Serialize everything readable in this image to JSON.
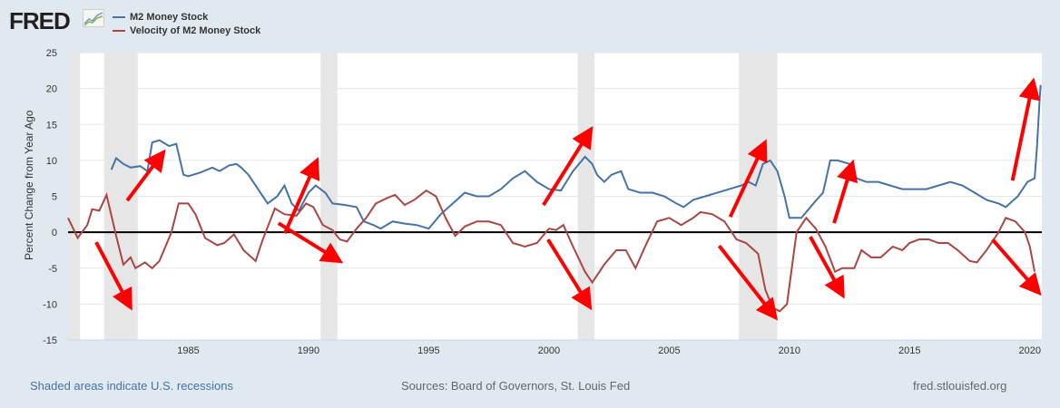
{
  "header": {
    "logo": "FRED",
    "legend": [
      {
        "label": "M2 Money Stock",
        "color": "#4572a7"
      },
      {
        "label": "Velocity of M2 Money Stock",
        "color": "#aa4643"
      }
    ]
  },
  "footer": {
    "recession_note": "Shaded areas indicate U.S. recessions",
    "sources": "Sources: Board of Governors, St. Louis Fed",
    "site": "fred.stlouisfed.org"
  },
  "chart_data": {
    "type": "line",
    "ylabel": "Percent Change from Year Ago",
    "xlim": [
      1980.0,
      2020.5
    ],
    "ylim": [
      -15,
      25
    ],
    "yticks": [
      25,
      20,
      15,
      10,
      5,
      0,
      -5,
      -10,
      -15
    ],
    "xticks": [
      1985,
      1990,
      1995,
      2000,
      2005,
      2010,
      2015,
      2020
    ],
    "grid": true,
    "recessions": [
      [
        1980.0,
        1980.5
      ],
      [
        1981.5,
        1982.9
      ],
      [
        1990.5,
        1991.2
      ],
      [
        2001.2,
        2001.9
      ],
      [
        2007.9,
        2009.5
      ]
    ],
    "series": [
      {
        "name": "M2 Money Stock",
        "color": "#4572a7",
        "points": [
          [
            1981.8,
            8.7
          ],
          [
            1982.0,
            10.3
          ],
          [
            1982.3,
            9.5
          ],
          [
            1982.6,
            9.0
          ],
          [
            1983.0,
            9.2
          ],
          [
            1983.3,
            8.5
          ],
          [
            1983.5,
            12.5
          ],
          [
            1983.8,
            12.8
          ],
          [
            1984.2,
            12.0
          ],
          [
            1984.5,
            12.3
          ],
          [
            1984.8,
            8.0
          ],
          [
            1985.0,
            7.8
          ],
          [
            1985.5,
            8.3
          ],
          [
            1986.0,
            9.0
          ],
          [
            1986.3,
            8.5
          ],
          [
            1986.7,
            9.3
          ],
          [
            1987.0,
            9.5
          ],
          [
            1987.2,
            9.0
          ],
          [
            1987.5,
            8.0
          ],
          [
            1987.8,
            6.5
          ],
          [
            1988.0,
            5.5
          ],
          [
            1988.3,
            4.0
          ],
          [
            1988.7,
            5.0
          ],
          [
            1989.0,
            6.5
          ],
          [
            1989.3,
            4.0
          ],
          [
            1989.6,
            3.0
          ],
          [
            1990.0,
            5.5
          ],
          [
            1990.3,
            6.5
          ],
          [
            1990.7,
            5.5
          ],
          [
            1991.0,
            4.0
          ],
          [
            1991.5,
            3.8
          ],
          [
            1992.0,
            3.5
          ],
          [
            1992.3,
            1.5
          ],
          [
            1992.7,
            1.0
          ],
          [
            1993.0,
            0.5
          ],
          [
            1993.5,
            1.5
          ],
          [
            1994.0,
            1.2
          ],
          [
            1994.5,
            1.0
          ],
          [
            1995.0,
            0.5
          ],
          [
            1995.5,
            2.5
          ],
          [
            1996.0,
            4.0
          ],
          [
            1996.5,
            5.5
          ],
          [
            1997.0,
            5.0
          ],
          [
            1997.5,
            5.0
          ],
          [
            1998.0,
            6.0
          ],
          [
            1998.5,
            7.5
          ],
          [
            1999.0,
            8.5
          ],
          [
            1999.5,
            7.0
          ],
          [
            2000.0,
            6.0
          ],
          [
            2000.5,
            5.8
          ],
          [
            2001.0,
            8.5
          ],
          [
            2001.5,
            10.5
          ],
          [
            2001.8,
            9.5
          ],
          [
            2002.0,
            8.0
          ],
          [
            2002.3,
            7.0
          ],
          [
            2002.6,
            8.0
          ],
          [
            2003.0,
            8.5
          ],
          [
            2003.3,
            6.0
          ],
          [
            2003.8,
            5.5
          ],
          [
            2004.3,
            5.5
          ],
          [
            2004.8,
            5.0
          ],
          [
            2005.3,
            4.0
          ],
          [
            2005.6,
            3.5
          ],
          [
            2006.0,
            4.5
          ],
          [
            2006.5,
            5.0
          ],
          [
            2007.0,
            5.5
          ],
          [
            2007.5,
            6.0
          ],
          [
            2008.0,
            6.5
          ],
          [
            2008.3,
            7.0
          ],
          [
            2008.6,
            6.5
          ],
          [
            2008.9,
            9.5
          ],
          [
            2009.2,
            10.0
          ],
          [
            2009.5,
            8.5
          ],
          [
            2009.8,
            5.0
          ],
          [
            2010.0,
            2.0
          ],
          [
            2010.5,
            2.0
          ],
          [
            2011.0,
            4.0
          ],
          [
            2011.4,
            5.5
          ],
          [
            2011.7,
            10.0
          ],
          [
            2012.0,
            10.0
          ],
          [
            2012.5,
            9.5
          ],
          [
            2012.8,
            7.5
          ],
          [
            2013.2,
            7.0
          ],
          [
            2013.7,
            7.0
          ],
          [
            2014.2,
            6.5
          ],
          [
            2014.7,
            6.0
          ],
          [
            2015.2,
            6.0
          ],
          [
            2015.7,
            6.0
          ],
          [
            2016.2,
            6.5
          ],
          [
            2016.7,
            7.0
          ],
          [
            2017.2,
            6.5
          ],
          [
            2017.7,
            5.5
          ],
          [
            2018.2,
            4.5
          ],
          [
            2018.7,
            4.0
          ],
          [
            2019.0,
            3.5
          ],
          [
            2019.5,
            5.0
          ],
          [
            2019.9,
            7.0
          ],
          [
            2020.2,
            7.5
          ],
          [
            2020.3,
            12.0
          ],
          [
            2020.4,
            18.0
          ],
          [
            2020.45,
            20.5
          ]
        ]
      },
      {
        "name": "Velocity of M2 Money Stock",
        "color": "#aa4643",
        "points": [
          [
            1980.0,
            2.0
          ],
          [
            1980.4,
            -0.8
          ],
          [
            1980.8,
            1.0
          ],
          [
            1981.0,
            3.2
          ],
          [
            1981.3,
            3.0
          ],
          [
            1981.6,
            5.2
          ],
          [
            1982.0,
            -0.5
          ],
          [
            1982.3,
            -4.5
          ],
          [
            1982.6,
            -3.5
          ],
          [
            1982.8,
            -5.0
          ],
          [
            1983.2,
            -4.2
          ],
          [
            1983.5,
            -5.0
          ],
          [
            1983.8,
            -4.0
          ],
          [
            1984.3,
            0
          ],
          [
            1984.6,
            4.0
          ],
          [
            1985.0,
            4.0
          ],
          [
            1985.3,
            2.5
          ],
          [
            1985.7,
            -0.8
          ],
          [
            1986.2,
            -1.8
          ],
          [
            1986.5,
            -1.5
          ],
          [
            1986.9,
            -0.3
          ],
          [
            1987.3,
            -2.5
          ],
          [
            1987.8,
            -4.0
          ],
          [
            1988.1,
            -1.0
          ],
          [
            1988.6,
            3.3
          ],
          [
            1989.0,
            2.5
          ],
          [
            1989.5,
            2.3
          ],
          [
            1989.9,
            4.0
          ],
          [
            1990.2,
            3.5
          ],
          [
            1990.6,
            1.0
          ],
          [
            1991.0,
            0.3
          ],
          [
            1991.3,
            -1.0
          ],
          [
            1991.6,
            -1.3
          ],
          [
            1992.0,
            0.5
          ],
          [
            1992.4,
            2.0
          ],
          [
            1992.8,
            4.0
          ],
          [
            1993.3,
            4.8
          ],
          [
            1993.6,
            5.2
          ],
          [
            1994.0,
            3.8
          ],
          [
            1994.4,
            4.5
          ],
          [
            1994.9,
            5.8
          ],
          [
            1995.3,
            5.0
          ],
          [
            1995.7,
            2.0
          ],
          [
            1996.1,
            -0.5
          ],
          [
            1996.5,
            0.8
          ],
          [
            1997.0,
            1.5
          ],
          [
            1997.5,
            1.5
          ],
          [
            1998.0,
            1.0
          ],
          [
            1998.5,
            -1.5
          ],
          [
            1999.0,
            -2.0
          ],
          [
            1999.5,
            -1.5
          ],
          [
            2000.0,
            0.5
          ],
          [
            2000.3,
            0.3
          ],
          [
            2000.6,
            1.0
          ],
          [
            2001.0,
            -2.0
          ],
          [
            2001.5,
            -5.5
          ],
          [
            2001.8,
            -7.0
          ],
          [
            2002.3,
            -4.5
          ],
          [
            2002.8,
            -2.5
          ],
          [
            2003.2,
            -2.5
          ],
          [
            2003.6,
            -5.0
          ],
          [
            2004.0,
            -2.0
          ],
          [
            2004.5,
            1.5
          ],
          [
            2005.0,
            2.0
          ],
          [
            2005.5,
            1.0
          ],
          [
            2006.0,
            2.0
          ],
          [
            2006.3,
            2.8
          ],
          [
            2006.8,
            2.5
          ],
          [
            2007.3,
            1.5
          ],
          [
            2007.8,
            -1.0
          ],
          [
            2008.2,
            -1.5
          ],
          [
            2008.7,
            -3.0
          ],
          [
            2009.0,
            -8.0
          ],
          [
            2009.3,
            -10.5
          ],
          [
            2009.6,
            -11.0
          ],
          [
            2009.9,
            -10.0
          ],
          [
            2010.3,
            0
          ],
          [
            2010.7,
            2.0
          ],
          [
            2011.1,
            0.5
          ],
          [
            2011.5,
            -2.0
          ],
          [
            2011.9,
            -5.5
          ],
          [
            2012.2,
            -5.0
          ],
          [
            2012.7,
            -5.0
          ],
          [
            2013.0,
            -2.5
          ],
          [
            2013.4,
            -3.5
          ],
          [
            2013.8,
            -3.5
          ],
          [
            2014.3,
            -2.0
          ],
          [
            2014.7,
            -2.5
          ],
          [
            2015.0,
            -1.5
          ],
          [
            2015.4,
            -1.0
          ],
          [
            2015.8,
            -1.0
          ],
          [
            2016.2,
            -1.5
          ],
          [
            2016.6,
            -1.5
          ],
          [
            2017.0,
            -2.5
          ],
          [
            2017.5,
            -4.0
          ],
          [
            2017.8,
            -4.2
          ],
          [
            2018.2,
            -2.5
          ],
          [
            2018.7,
            0
          ],
          [
            2019.0,
            2.0
          ],
          [
            2019.4,
            1.5
          ],
          [
            2019.8,
            0
          ],
          [
            2020.0,
            -2.0
          ],
          [
            2020.2,
            -5.5
          ]
        ]
      }
    ],
    "annotations": {
      "type": "arrows",
      "color": "#ff0000",
      "arrows": [
        [
          [
            1982.46,
            4.41
          ],
          [
            1983.79,
            10.34
          ]
        ],
        [
          [
            1981.17,
            -1.39
          ],
          [
            1982.46,
            -9.58
          ]
        ],
        [
          [
            1989.02,
            -0.13
          ],
          [
            1990.23,
            9.08
          ]
        ],
        [
          [
            1988.75,
            1.26
          ],
          [
            1991.06,
            -3.53
          ]
        ],
        [
          [
            1999.77,
            3.78
          ],
          [
            2001.59,
            13.49
          ]
        ],
        [
          [
            1999.96,
            -1.01
          ],
          [
            2001.55,
            -9.58
          ]
        ],
        [
          [
            2007.54,
            2.14
          ],
          [
            2008.86,
            11.6
          ]
        ],
        [
          [
            2007.08,
            -1.89
          ],
          [
            2009.24,
            -11.1
          ]
        ],
        [
          [
            2011.86,
            1.26
          ],
          [
            2012.54,
            8.7
          ]
        ],
        [
          [
            2010.87,
            -0.63
          ],
          [
            2012.08,
            -7.94
          ]
        ],
        [
          [
            2019.28,
            7.19
          ],
          [
            2020.08,
            20.05
          ]
        ],
        [
          [
            2018.45,
            -1.01
          ],
          [
            2020.19,
            -7.69
          ]
        ]
      ]
    }
  }
}
